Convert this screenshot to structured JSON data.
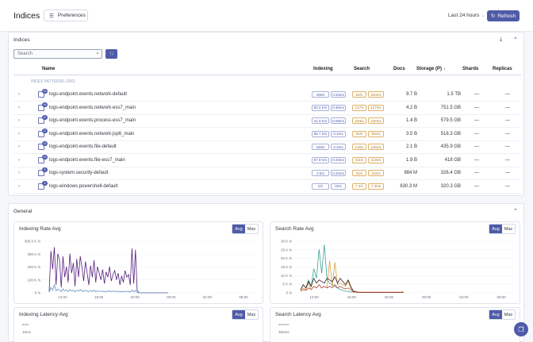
{
  "header": {
    "title": "Indices",
    "preferences_label": "Preferences",
    "time_range": "Last 24 hours",
    "refresh_label": "Refresh"
  },
  "indices": {
    "title": "Indices",
    "search_placeholder": "Search",
    "columns": {
      "name": "Name",
      "indexing": "Indexing",
      "search": "Search",
      "docs": "Docs",
      "storage": "Storage (P)",
      "shards": "Shards",
      "replicas": "Replicas"
    },
    "patterns_label": "INDEX PATTERNS (306)",
    "rows": [
      {
        "badge": "22",
        "name": "logs-endpoint.events.network-default",
        "idx_rate": "406/s",
        "idx_lat": "0.23ms",
        "srch_rate": "52/s",
        "srch_lat": "323ms",
        "docs": "9.7 B",
        "storage": "1.5 TB",
        "shards": "—",
        "replicas": "—"
      },
      {
        "badge": "16",
        "name": "logs-endpoint.events.network-ess7_main",
        "idx_rate": "92.4 K/s",
        "idx_lat": "0.36ms",
        "srch_rate": "117/s",
        "srch_lat": "117ms",
        "docs": "4.2 B",
        "storage": "751.5 GB",
        "shards": "—",
        "replicas": "—"
      },
      {
        "badge": "17",
        "name": "logs-endpoint.events.process-ess7_main",
        "idx_rate": "31.0 K/s",
        "idx_lat": "0.09ms",
        "srch_rate": "234/s",
        "srch_lat": "234ms",
        "docs": "1.4 B",
        "storage": "579.5 GB",
        "shards": "—",
        "replicas": "—"
      },
      {
        "badge": "17",
        "name": "logs-endpoint.events.network-jsp6_main",
        "idx_rate": "55.7 K/s",
        "idx_lat": "0.4ms",
        "srch_rate": "92/s",
        "srch_lat": "92ms",
        "docs": "3.5 B",
        "storage": "518.3 GB",
        "shards": "—",
        "replicas": "—"
      },
      {
        "badge": "13",
        "name": "logs-endpoint.events.file-default",
        "idx_rate": "180/s",
        "idx_lat": "0.2ms",
        "srch_rate": "146/s",
        "srch_lat": "146ms",
        "docs": "2.1 B",
        "storage": "435.9 GB",
        "shards": "—",
        "replicas": "—"
      },
      {
        "badge": "13",
        "name": "logs-endpoint.events.file-ess7_main",
        "idx_rate": "87.9 K/s",
        "idx_lat": "0.43ms",
        "srch_rate": "411/s",
        "srch_lat": "113ms",
        "docs": "1.9 B",
        "storage": "418 GB",
        "shards": "—",
        "replicas": "—"
      },
      {
        "badge": "5",
        "name": "logs-system.security-default",
        "idx_rate": "2.5/s",
        "idx_lat": "0.22ms",
        "srch_rate": "31/s",
        "srch_lat": "31ms",
        "docs": "984 M",
        "storage": "326.4 GB",
        "shards": "—",
        "replicas": "—"
      },
      {
        "badge": "5",
        "name": "logs-windows.powershell-default",
        "idx_rate": "0/s",
        "idx_lat": "0ms",
        "srch_rate": "7.4/s",
        "srch_lat": "7.4ms",
        "docs": "630.3 M",
        "storage": "320.3 GB",
        "shards": "—",
        "replicas": "—"
      }
    ]
  },
  "general": {
    "title": "General",
    "toggle_avg": "Avg",
    "toggle_max": "Max",
    "charts": [
      {
        "title": "Indexing Rate Avg"
      },
      {
        "title": "Search Rate Avg"
      },
      {
        "title": "Indexing Latency Avg"
      },
      {
        "title": "Search Latency Avg"
      }
    ]
  },
  "colors": {
    "accent": "#4f5ba8",
    "series_purple": "#54207e",
    "series_blue": "#6092c0",
    "series_teal": "#3fa59a",
    "series_orange": "#d6a34f",
    "series_dark": "#3a1f1f",
    "series_red": "#b84d4d"
  },
  "chart_data": [
    {
      "type": "line",
      "title": "Indexing Rate Avg",
      "x_ticks": [
        "12:00",
        "16:00",
        "20:00",
        "00:00",
        "04:00",
        "08:00"
      ],
      "y_ticks": [
        "0 /s",
        "100 K /s",
        "200 K /s",
        "300 K /s",
        "395.5 K /s"
      ],
      "ylim": [
        0,
        395500
      ],
      "series": [
        {
          "color": "#54207e",
          "values": [
            10000,
            320000,
            180000,
            350000,
            60000,
            300000,
            250000,
            40000,
            280000,
            120000,
            200000,
            80000,
            300000,
            150000,
            230000,
            50000,
            260000,
            120000,
            280000,
            200000,
            90000,
            240000,
            150000,
            60000,
            210000,
            120000,
            250000,
            80000,
            200000,
            150000,
            100000,
            180000,
            70000,
            160000,
            120000,
            200000,
            90000,
            140000,
            170000,
            100000,
            150000,
            60000,
            130000,
            80000,
            170000,
            120000,
            140000,
            60000,
            340000,
            70000,
            330000,
            20000,
            0,
            0,
            0,
            0,
            0,
            0,
            0,
            0,
            0,
            0,
            0,
            0,
            0,
            0,
            0,
            0,
            0,
            0
          ]
        },
        {
          "color": "#6092c0",
          "values": [
            5000,
            40000,
            20000,
            60000,
            15000,
            30000,
            20000,
            10000,
            30000,
            15000,
            20000,
            10000,
            25000,
            15000,
            20000,
            8000,
            20000,
            12000,
            25000,
            15000,
            10000,
            20000,
            12000,
            8000,
            18000,
            10000,
            20000,
            8000,
            15000,
            12000,
            10000,
            14000,
            8000,
            12000,
            10000,
            15000,
            8000,
            12000,
            14000,
            9000,
            12000,
            7000,
            10000,
            8000,
            12000,
            10000,
            11000,
            6000,
            20000,
            8000,
            18000,
            3000,
            0,
            0,
            0,
            0,
            0,
            0,
            0,
            0,
            0,
            0,
            0,
            0,
            0,
            0,
            0,
            0,
            0,
            0
          ]
        }
      ]
    },
    {
      "type": "line",
      "title": "Search Rate Avg",
      "x_ticks": [
        "12:00",
        "16:00",
        "20:00",
        "00:00",
        "04:00",
        "08:00"
      ],
      "y_ticks": [
        "0 /s",
        "5 K /s",
        "10 K /s",
        "15 K /s",
        "20 K /s",
        "25 K /s",
        "30 K /s"
      ],
      "ylim": [
        0,
        32000
      ],
      "series": [
        {
          "color": "#3fa59a",
          "values": [
            2000,
            5000,
            3000,
            8000,
            4000,
            15000,
            9000,
            27000,
            12000,
            30000,
            8000,
            6000,
            5000,
            4000,
            3000,
            2000,
            1500,
            1000,
            1000,
            500,
            500,
            500,
            300,
            300,
            300,
            300,
            300,
            300,
            300,
            300,
            300,
            300,
            300,
            300,
            300,
            300,
            300,
            300,
            300,
            300
          ]
        },
        {
          "color": "#d6a34f",
          "values": [
            1000,
            3000,
            2000,
            6000,
            2000,
            4000,
            3000,
            5000,
            3000,
            4000,
            3000,
            20000,
            4000,
            19000,
            5000,
            6000,
            5000,
            4000,
            7000,
            3000,
            1000,
            1000,
            500,
            500,
            500,
            500,
            500,
            500,
            500,
            500,
            500,
            500,
            500,
            500,
            500,
            500,
            500,
            500,
            500,
            800
          ]
        },
        {
          "color": "#3a1f1f",
          "values": [
            2000,
            5000,
            3000,
            7000,
            4000,
            9000,
            6000,
            8000,
            7000,
            6000,
            9000,
            8000,
            7000,
            10000,
            6000,
            9000,
            7000,
            5000,
            8000,
            4000,
            1000,
            500,
            300,
            300,
            300,
            300,
            300,
            300,
            300,
            300,
            300,
            300,
            300,
            300,
            300,
            300,
            300,
            300,
            300,
            300
          ]
        },
        {
          "color": "#b84d4d",
          "values": [
            1000,
            2000,
            1500,
            3000,
            2000,
            4000,
            3000,
            5000,
            3000,
            4000,
            3000,
            4000,
            3000,
            5000,
            3000,
            4000,
            3000,
            2500,
            3000,
            2000,
            500,
            300,
            200,
            200,
            200,
            200,
            200,
            200,
            200,
            200,
            200,
            200,
            200,
            200,
            200,
            200,
            200,
            200,
            200,
            200
          ]
        }
      ]
    },
    {
      "type": "line",
      "title": "Indexing Latency Avg",
      "y_ticks": [
        "8ms",
        "10ms"
      ]
    },
    {
      "type": "line",
      "title": "Search Latency Avg",
      "y_ticks": [
        "300ms",
        "360ms"
      ]
    }
  ]
}
